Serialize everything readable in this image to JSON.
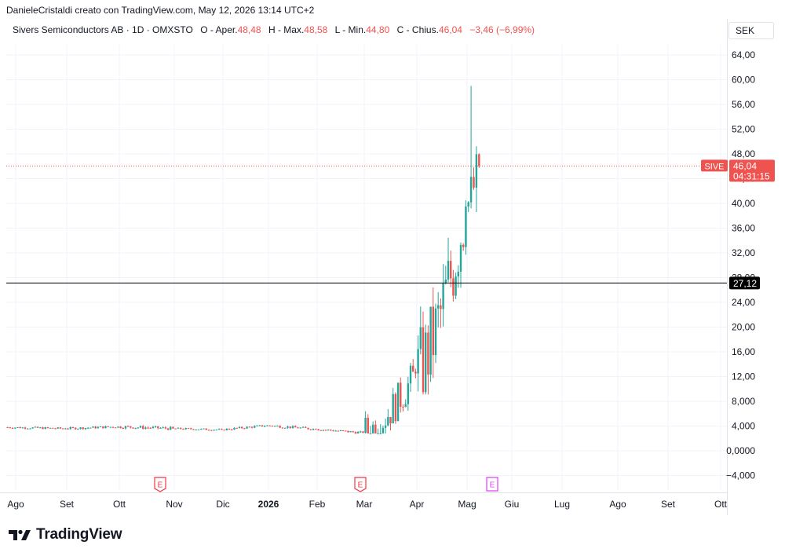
{
  "byline": "DanieleCristaldi creato con TradingView.com, May 12, 2026 13:14 UTC+2",
  "legend": {
    "title": "Sivers Semiconductors AB · 1D · OMXSTO",
    "open_label": "O - Aper.",
    "open": "48,48",
    "high_label": "H - Max.",
    "high": "48,58",
    "low_label": "L - Min.",
    "low": "44,80",
    "close_label": "C - Chius.",
    "close": "46,04",
    "change": "−3,46 (−6,99%)"
  },
  "currency": "SEK",
  "price_tag": {
    "symbol": "SIVE",
    "price": "46,04",
    "countdown": "04:31:15"
  },
  "level_tag": "27,12",
  "brand": "TradingView",
  "colors": {
    "up": "#26a69a",
    "down": "#ef5350",
    "level_line": "#000000",
    "earnings_past": "#f23645",
    "earnings_future": "#e040fb",
    "grid": "#f0f3fa"
  },
  "chart_data": {
    "type": "candlestick",
    "x_tick_labels": [
      "Ago",
      "Set",
      "Ott",
      "Nov",
      "Dic",
      "2026",
      "Feb",
      "Mar",
      "Apr",
      "Mag",
      "Giu",
      "Lug",
      "Ago",
      "Set",
      "Ott"
    ],
    "y_tick_labels": [
      "64,00",
      "60,00",
      "56,00",
      "52,00",
      "48,00",
      "44,00",
      "40,00",
      "36,00",
      "32,00",
      "28,00",
      "24,00",
      "20,00",
      "16,00",
      "12,00",
      "8,000",
      "4,000",
      "0,0000",
      "−4,000"
    ],
    "ylim": [
      -5.5,
      66
    ],
    "y_scale": "linear",
    "last_price": 46.04,
    "horizontal_level": 27.12,
    "earnings_markers": [
      {
        "label": "E",
        "date": "2025-10-22",
        "status": "past"
      },
      {
        "label": "E",
        "date": "2026-02-26",
        "status": "past"
      },
      {
        "label": "E",
        "date": "2026-05-14",
        "status": "upcoming"
      }
    ],
    "ohlc": [
      {
        "period": "Ago 2025",
        "open": 3.8,
        "high": 4.3,
        "low": 3.3,
        "close": 3.6
      },
      {
        "period": "Set 2025",
        "open": 3.6,
        "high": 4.5,
        "low": 3.4,
        "close": 3.9
      },
      {
        "period": "Ott 2025",
        "open": 3.9,
        "high": 4.8,
        "low": 3.3,
        "close": 3.6
      },
      {
        "period": "Nov 2025",
        "open": 3.6,
        "high": 4.0,
        "low": 3.1,
        "close": 3.4
      },
      {
        "period": "Dic 2025",
        "open": 3.4,
        "high": 4.4,
        "low": 3.3,
        "close": 4.1
      },
      {
        "period": "Gen 2026",
        "open": 4.1,
        "high": 4.5,
        "low": 3.3,
        "close": 3.5
      },
      {
        "period": "Feb 2026",
        "open": 3.5,
        "high": 3.8,
        "low": 2.6,
        "close": 2.9
      },
      {
        "period": "Mar 2026",
        "open": 2.9,
        "high": 15.6,
        "low": 2.8,
        "close": 12.5
      },
      {
        "period": "Apr 2026",
        "open": 12.5,
        "high": 40.5,
        "low": 9.1,
        "close": 39.5
      },
      {
        "period": "Mag 2026",
        "open": 39.5,
        "high": 59.0,
        "low": 38.6,
        "close": 46.04
      }
    ]
  }
}
